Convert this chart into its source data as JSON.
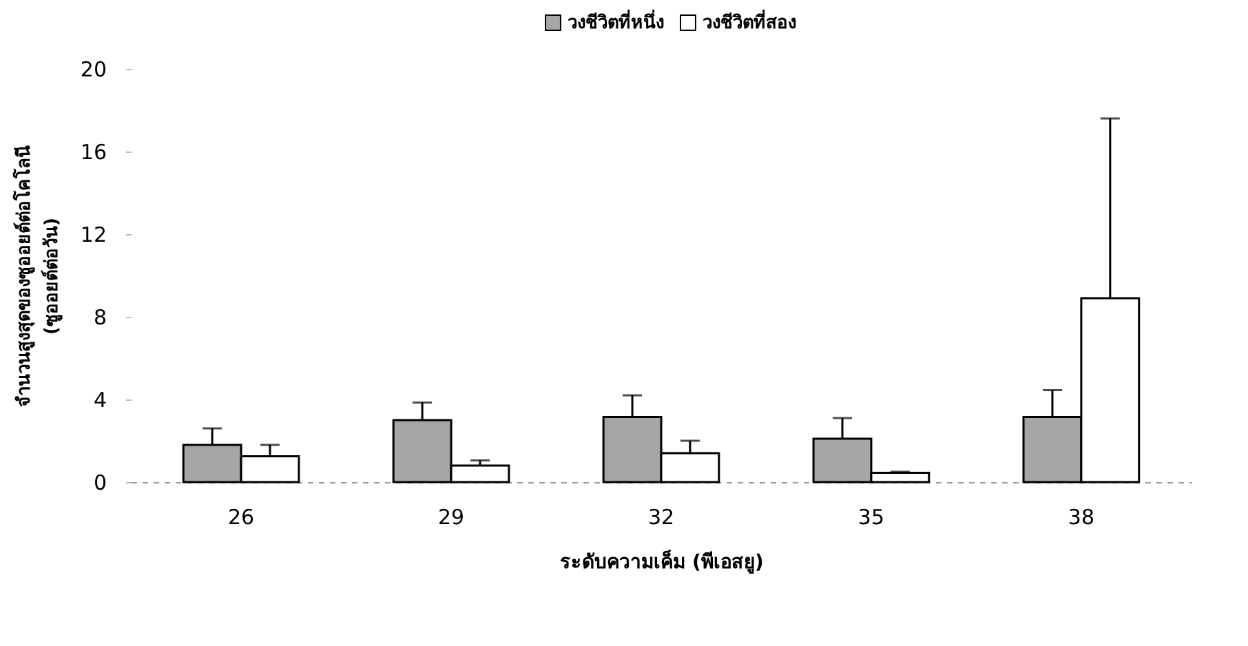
{
  "chart_data": {
    "type": "bar",
    "xlabel": "ระดับความเค็ม (พีเอสยู)",
    "ylabel": "จำนวนสูงสุดของซูออยต์ต่อโคโลนี (ซูออยต์ต่อวัน)",
    "categories": [
      "26",
      "29",
      "32",
      "35",
      "38"
    ],
    "series": [
      {
        "name": "วงชีวิตที่หนึ่ง",
        "color": "#a6a6a6",
        "values": [
          1.8,
          3.0,
          3.15,
          2.1,
          3.15
        ],
        "errors": [
          [
            1.8,
            2.6
          ],
          [
            3.0,
            3.85
          ],
          [
            3.15,
            4.2
          ],
          [
            2.1,
            3.1
          ],
          [
            3.15,
            4.45
          ]
        ]
      },
      {
        "name": "วงชีวิตที่สอง",
        "color": "#ffffff",
        "values": [
          1.25,
          0.8,
          1.4,
          0.45,
          8.9
        ],
        "errors": [
          [
            1.25,
            1.8
          ],
          [
            0.8,
            1.05
          ],
          [
            1.4,
            2.0
          ],
          [
            0.45,
            0.5
          ],
          [
            8.9,
            17.6
          ]
        ]
      }
    ],
    "ylim": [
      0,
      20
    ],
    "yticks": [
      0,
      4,
      8,
      12,
      16,
      20
    ],
    "grid": false,
    "legend": "top"
  }
}
